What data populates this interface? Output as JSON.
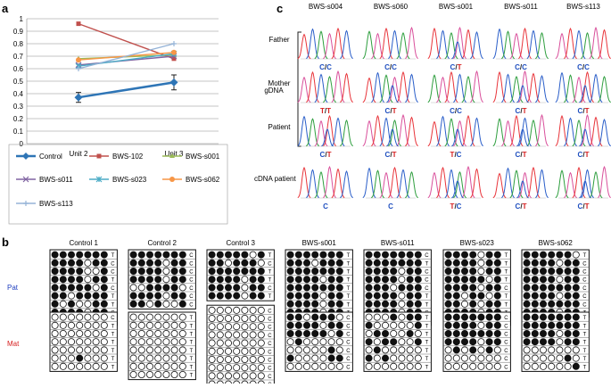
{
  "panels": {
    "a": "a",
    "b": "b",
    "c": "c"
  },
  "chart_data": {
    "type": "line",
    "categories": [
      "Unit 2",
      "Unit 3"
    ],
    "ylim": [
      0,
      1
    ],
    "yticks": [
      "0",
      "0.1",
      "0.2",
      "0.3",
      "0.4",
      "0.5",
      "0.6",
      "0.7",
      "0.8",
      "0.9",
      "1"
    ],
    "series": [
      {
        "name": "Control",
        "values": [
          0.37,
          0.49
        ],
        "err": [
          0.04,
          0.06
        ],
        "color": "#2e75b6",
        "marker": "diamond"
      },
      {
        "name": "BWS-102",
        "values": [
          0.96,
          0.68
        ],
        "color": "#c0504d",
        "marker": "square"
      },
      {
        "name": "BWS-s001",
        "values": [
          0.68,
          0.71
        ],
        "color": "#9bbb59",
        "marker": "triangle"
      },
      {
        "name": "BWS-s011",
        "values": [
          0.63,
          0.7
        ],
        "color": "#8064a2",
        "marker": "x"
      },
      {
        "name": "BWS-s023",
        "values": [
          0.62,
          0.72
        ],
        "color": "#4bacc6",
        "marker": "star"
      },
      {
        "name": "BWS-s062",
        "values": [
          0.67,
          0.73
        ],
        "color": "#f79646",
        "marker": "circle"
      },
      {
        "name": "BWS-s113",
        "values": [
          0.6,
          0.8
        ],
        "color": "#95b3d7",
        "marker": "plus"
      }
    ]
  },
  "panel_b": {
    "pat_label": "Pat",
    "mat_label": "Mat",
    "samples": [
      {
        "name": "Control 1",
        "pat": {
          "dots": [
            "1111111",
            "1111011",
            "1111001",
            "1111011",
            "1111101",
            "1101111",
            "1010011",
            "1111011",
            "1011000"
          ],
          "alleles": [
            "T",
            "C",
            "C",
            "T",
            "C",
            "T",
            "T",
            "C",
            "C"
          ]
        },
        "mat": {
          "dots": [
            "0000000",
            "0000000",
            "0000000",
            "0000000",
            "0000000",
            "0001000",
            "0000000"
          ],
          "alleles": [
            "C",
            "T",
            "T",
            "T",
            "T",
            "T",
            "T"
          ]
        }
      },
      {
        "name": "Control 2",
        "pat": {
          "dots": [
            "1111111",
            "1111011",
            "1111011",
            "1111011",
            "0011110",
            "1111011",
            "1101001"
          ],
          "alleles": [
            "C",
            "C",
            "C",
            "C",
            "C",
            "C",
            "C"
          ]
        },
        "mat": {
          "dots": [
            "0000000",
            "0000000",
            "0000000",
            "0000000",
            "0000000",
            "0000000",
            "0000000",
            "0000000"
          ],
          "alleles": [
            "T",
            "T",
            "T",
            "T",
            "T",
            "T",
            "T",
            "T"
          ]
        }
      },
      {
        "name": "Control 3",
        "pat": {
          "dots": [
            "1111101",
            "1101110",
            "1111111",
            "1111011",
            "1111011",
            "1111011"
          ],
          "alleles": [
            "T",
            "C",
            "T",
            "T",
            "C",
            "T"
          ]
        },
        "mat": {
          "dots": [
            "0000000",
            "0000000",
            "0000000",
            "0000000",
            "0000000",
            "0000000",
            "0000000",
            "0000000",
            "0000000",
            "0000000",
            "1100000"
          ],
          "alleles": [
            "C",
            "C",
            "C",
            "C",
            "C",
            "C",
            "C",
            "C",
            "C",
            "C",
            "C"
          ]
        }
      },
      {
        "name": "BWS-s001",
        "pat": {
          "dots": [
            "1111111",
            "1110111",
            "1111111",
            "1111011",
            "1111111",
            "1111011",
            "1111011",
            "1111011"
          ],
          "alleles": [
            "T",
            "T",
            "T",
            "T",
            "T",
            "T",
            "T",
            "T"
          ]
        },
        "mat": {
          "dots": [
            "1101110",
            "1111011",
            "1111101",
            "0100000",
            "0000010",
            "1000011",
            "0000000"
          ],
          "alleles": [
            "C",
            "C",
            "C",
            "C",
            "C",
            "C",
            "C"
          ]
        }
      },
      {
        "name": "BWS-s011",
        "pat": {
          "dots": [
            "1111111",
            "1111111",
            "1111011",
            "1111011",
            "1110111",
            "1111011",
            "1111011",
            "1111011",
            "1101011"
          ],
          "alleles": [
            "C",
            "T",
            "C",
            "C",
            "C",
            "T",
            "T",
            "C",
            "C"
          ]
        },
        "mat": {
          "dots": [
            "0001011",
            "1000001",
            "0110010",
            "1011001",
            "0100000",
            "1010000",
            "0000000"
          ],
          "alleles": [
            "T",
            "T",
            "T",
            "T",
            "T",
            "T",
            "T"
          ]
        }
      },
      {
        "name": "BWS-s023",
        "pat": {
          "dots": [
            "1111011",
            "1111011",
            "1111011",
            "1111101",
            "1111011",
            "1101101",
            "1101011",
            "1111011",
            "1111011"
          ],
          "alleles": [
            "T",
            "T",
            "T",
            "T",
            "C",
            "T",
            "T",
            "T",
            "T"
          ]
        },
        "mat": {
          "dots": [
            "1111111",
            "1111011",
            "1111111",
            "1111011",
            "0101010",
            "0000000",
            "0000000"
          ],
          "alleles": [
            "C",
            "C",
            "C",
            "C",
            "C",
            "C",
            "C"
          ]
        }
      },
      {
        "name": "BWS-s062",
        "pat": {
          "dots": [
            "1111110",
            "1111011",
            "1111111",
            "1111011",
            "1111111",
            "1111011",
            "1111111",
            "1111011"
          ],
          "alleles": [
            "T",
            "C",
            "C",
            "C",
            "C",
            "C",
            "C",
            "T"
          ]
        },
        "mat": {
          "dots": [
            "1111111",
            "1111111",
            "1111011",
            "1111011",
            "0000000",
            "0000010",
            "0000001"
          ],
          "alleles": [
            "T",
            "T",
            "T",
            "T",
            "T",
            "T",
            "T"
          ]
        }
      }
    ]
  },
  "panel_c": {
    "samples": [
      "BWS-s004",
      "BWS-s060",
      "BWS-s001",
      "BWS-s011",
      "BWS-s113"
    ],
    "gdna_label": "gDNA",
    "rows": [
      {
        "label": "Father",
        "calls": [
          [
            "C/C"
          ],
          [
            "C/C"
          ],
          [
            "C/T"
          ],
          [
            "C/C"
          ],
          [
            "C/C"
          ]
        ]
      },
      {
        "label": "Mother",
        "calls": [
          [
            "T/T"
          ],
          [
            "C/T"
          ],
          [
            "C/C"
          ],
          [
            "C/T"
          ],
          [
            "C/T"
          ]
        ]
      },
      {
        "label": "Patient",
        "calls": [
          [
            "C/T"
          ],
          [
            "C/T"
          ],
          [
            "T/C"
          ],
          [
            "C/T"
          ],
          [
            "C/T"
          ]
        ]
      },
      {
        "label": "cDNA patient",
        "calls": [
          [
            "C"
          ],
          [
            "C"
          ],
          [
            "T/C"
          ],
          [
            "C/T"
          ],
          [
            "C/T"
          ]
        ]
      }
    ]
  }
}
